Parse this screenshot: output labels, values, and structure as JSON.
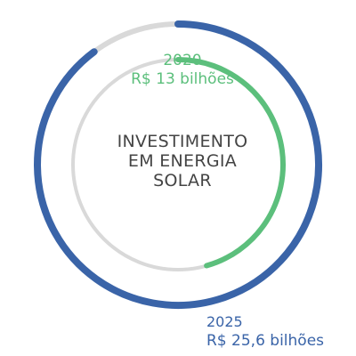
{
  "chart_data": {
    "type": "radial-bar",
    "title_lines": [
      "INVESTIMENTO",
      "EM ENERGIA",
      "SOLAR"
    ],
    "series": [
      {
        "year": "2020",
        "value_label": "R$ 13 bilhões",
        "value": 13,
        "color": "#5cbf7c",
        "track_color": "#d9d9d9"
      },
      {
        "year": "2025",
        "value_label": "R$ 25,6 bilhões",
        "value": 25.6,
        "color": "#3a64a8",
        "track_color": "#d9d9d9"
      }
    ],
    "max_value": 28.5,
    "start_angle_deg": 0,
    "direction": "clockwise"
  }
}
